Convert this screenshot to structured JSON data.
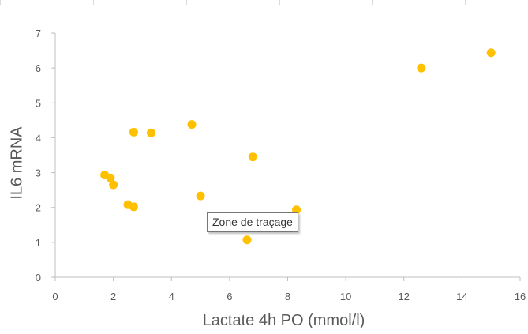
{
  "chart_data": {
    "type": "scatter",
    "xlabel": "Lactate 4h PO (mmol/l)",
    "ylabel": "IL6 mRNA",
    "xlim": [
      0,
      16
    ],
    "ylim": [
      0,
      7
    ],
    "x_ticks": [
      "0",
      "2",
      "4",
      "6",
      "8",
      "10",
      "12",
      "14",
      "16"
    ],
    "y_ticks": [
      "0",
      "1",
      "2",
      "3",
      "4",
      "5",
      "6",
      "7"
    ],
    "grid": false,
    "marker_color": "#FFC000",
    "series": [
      {
        "points": [
          {
            "x": 1.7,
            "y": 2.93
          },
          {
            "x": 1.9,
            "y": 2.85
          },
          {
            "x": 2.0,
            "y": 2.65
          },
          {
            "x": 2.5,
            "y": 2.08
          },
          {
            "x": 2.7,
            "y": 2.02
          },
          {
            "x": 2.7,
            "y": 4.16
          },
          {
            "x": 3.3,
            "y": 4.14
          },
          {
            "x": 4.7,
            "y": 4.38
          },
          {
            "x": 5.0,
            "y": 2.33
          },
          {
            "x": 6.6,
            "y": 1.07
          },
          {
            "x": 6.8,
            "y": 3.45
          },
          {
            "x": 8.3,
            "y": 1.93
          },
          {
            "x": 12.6,
            "y": 6.0
          },
          {
            "x": 15.0,
            "y": 6.44
          }
        ]
      }
    ]
  },
  "tooltip": {
    "text": "Zone de traçage"
  }
}
